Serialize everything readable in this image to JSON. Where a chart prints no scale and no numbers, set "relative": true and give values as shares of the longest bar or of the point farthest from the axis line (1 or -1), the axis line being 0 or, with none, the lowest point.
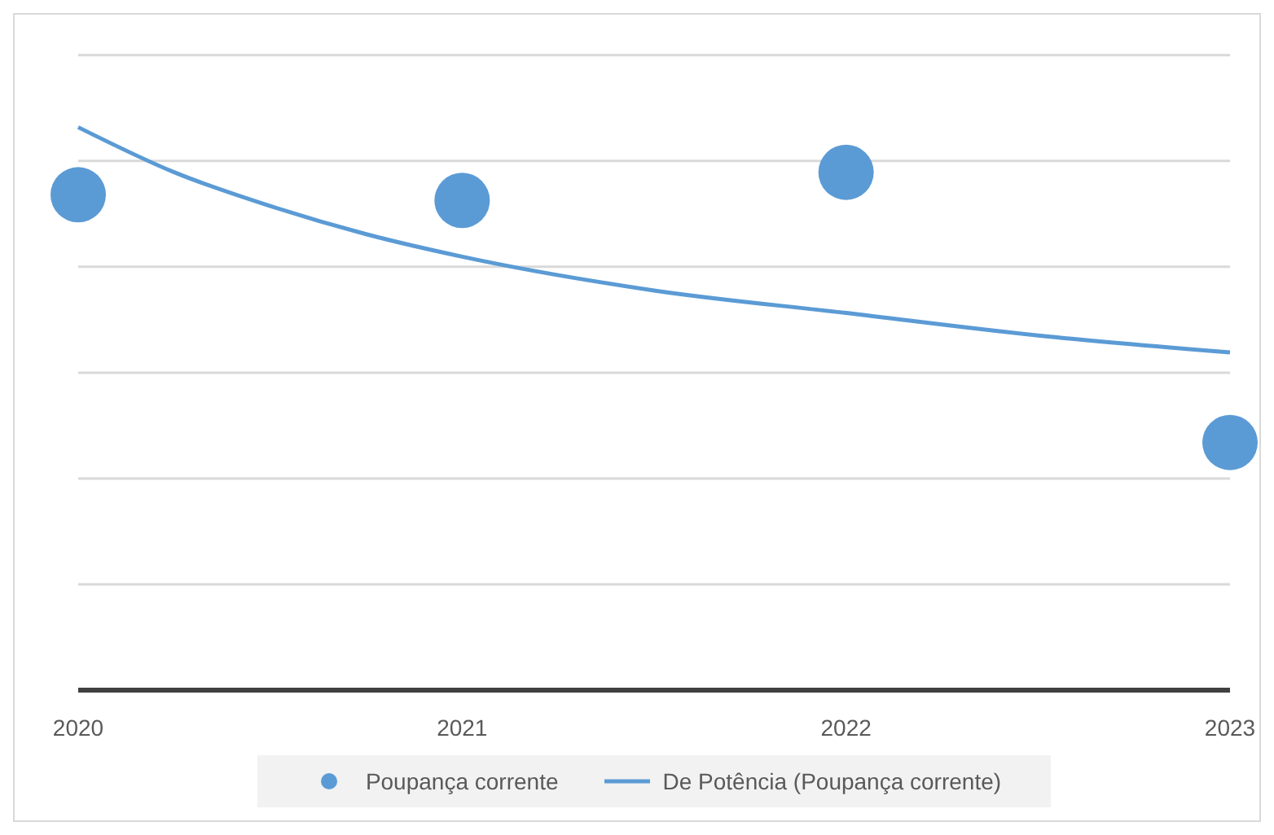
{
  "chart_data": {
    "type": "scatter",
    "relative": true,
    "x": [
      2020,
      2021,
      2022,
      2023
    ],
    "xlim": [
      2020,
      2023
    ],
    "xticks": [
      2020,
      2021,
      2022,
      2023
    ],
    "grid": "y",
    "legend": "bottom",
    "marker": "circle",
    "series": [
      {
        "name": "Poupança corrente",
        "color": "#5b9bd5",
        "values": [
          0.88,
          0.87,
          0.92,
          0.44
        ]
      },
      {
        "name": "De Potência (Poupança corrente)",
        "type": "line",
        "color": "#5b9bd5",
        "marker": "none",
        "x": [
          2020,
          2020.25,
          2020.5,
          2020.75,
          2021,
          2021.5,
          2022,
          2022.5,
          2023
        ],
        "values": [
          1,
          0.92,
          0.86,
          0.81,
          0.77,
          0.71,
          0.67,
          0.63,
          0.6
        ]
      }
    ]
  }
}
